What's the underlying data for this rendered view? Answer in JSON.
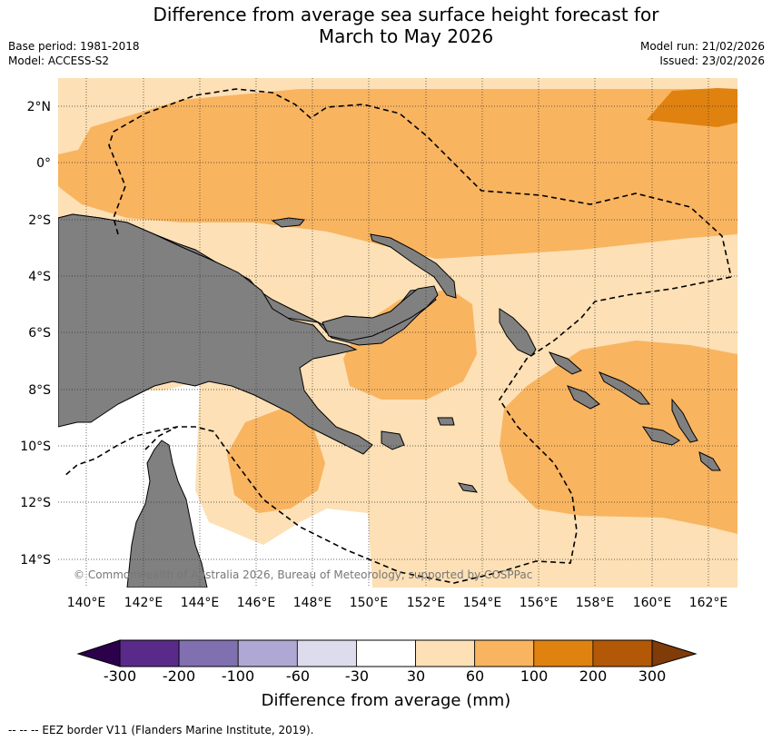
{
  "title_line1": "Difference from average sea surface height forecast for",
  "title_line2": "March to May 2026",
  "base_period": "Base period: 1981-2018",
  "model": "Model: ACCESS-S2",
  "model_run": "Model run: 21/02/2026",
  "issued": "Issued: 23/02/2026",
  "lat_labels": [
    "2°N",
    "0°",
    "2°S",
    "4°S",
    "6°S",
    "8°S",
    "10°S",
    "12°S",
    "14°S"
  ],
  "lon_labels": [
    "140°E",
    "142°E",
    "144°E",
    "146°E",
    "148°E",
    "150°E",
    "152°E",
    "154°E",
    "156°E",
    "158°E",
    "160°E",
    "162°E"
  ],
  "copyright": "© Commonwealth of Australia 2026, Bureau of Meteorology, supported by COSPPac",
  "colorbar": {
    "ticks": [
      "-300",
      "-200",
      "-100",
      "-60",
      "-30",
      "30",
      "60",
      "100",
      "200",
      "300"
    ],
    "colors": [
      "#5a2a8a",
      "#8070b0",
      "#b0a8d4",
      "#dcdcec",
      "#ffffff",
      "#fde0b5",
      "#f9b460",
      "#e0820f",
      "#b35806"
    ],
    "low_extend_color": "#2d004b",
    "high_extend_color": "#7f3b08",
    "title": "Difference from average (mm)"
  },
  "footer": "--  --  -- EEZ border V11 (Flanders Marine Institute, 2019).",
  "colors": {
    "land": "#808080",
    "band_30_60": "#fde0b5",
    "band_60_100": "#f9b460",
    "band_100_200": "#e0820f"
  }
}
